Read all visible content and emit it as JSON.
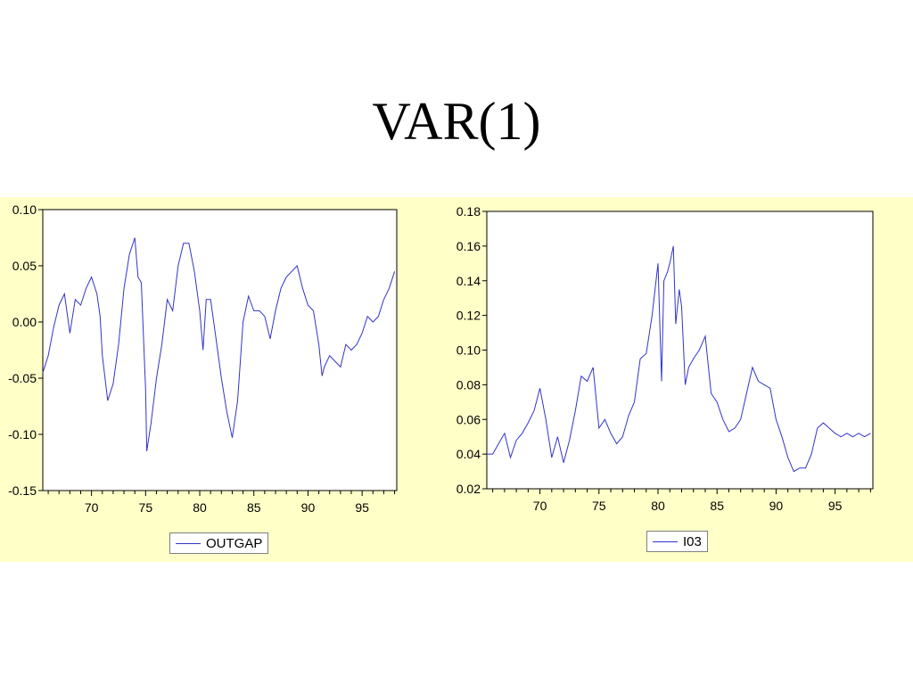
{
  "slide": {
    "title": "VAR(1)"
  },
  "chart_data": [
    {
      "type": "line",
      "title": "",
      "xlabel": "",
      "ylabel": "",
      "xlim": [
        1965.5,
        1998.2
      ],
      "ylim": [
        -0.15,
        0.1
      ],
      "yticks": [
        "0.10",
        "0.05",
        "0.00",
        "-0.05",
        "-0.10",
        "-0.15"
      ],
      "ytick_values": [
        0.1,
        0.05,
        0.0,
        -0.05,
        -0.1,
        -0.15
      ],
      "xticks": [
        "70",
        "75",
        "80",
        "85",
        "90",
        "95"
      ],
      "xtick_values": [
        1970,
        1975,
        1980,
        1985,
        1990,
        1995
      ],
      "grid": false,
      "legend": "bottom-center",
      "color": "#3333cc",
      "series": [
        {
          "name": "OUTGAP",
          "x": [
            1965.5,
            1966.0,
            1966.5,
            1967.0,
            1967.5,
            1968.0,
            1968.5,
            1969.0,
            1969.5,
            1970.0,
            1970.5,
            1970.8,
            1971.0,
            1971.5,
            1972.0,
            1972.5,
            1973.0,
            1973.5,
            1974.0,
            1974.3,
            1974.6,
            1975.0,
            1975.1,
            1975.5,
            1976.0,
            1976.5,
            1977.0,
            1977.5,
            1978.0,
            1978.5,
            1979.0,
            1979.5,
            1980.0,
            1980.3,
            1980.6,
            1981.0,
            1981.5,
            1982.0,
            1982.5,
            1983.0,
            1983.5,
            1984.0,
            1984.5,
            1985.0,
            1985.5,
            1986.0,
            1986.5,
            1987.0,
            1987.5,
            1988.0,
            1988.5,
            1989.0,
            1989.5,
            1990.0,
            1990.5,
            1991.0,
            1991.3,
            1991.5,
            1992.0,
            1992.5,
            1993.0,
            1993.5,
            1994.0,
            1994.5,
            1995.0,
            1995.5,
            1996.0,
            1996.5,
            1997.0,
            1997.5,
            1998.0
          ],
          "values": [
            -0.045,
            -0.03,
            -0.005,
            0.015,
            0.025,
            -0.01,
            0.02,
            0.015,
            0.03,
            0.04,
            0.025,
            0.005,
            -0.03,
            -0.07,
            -0.055,
            -0.02,
            0.03,
            0.06,
            0.075,
            0.04,
            0.035,
            -0.06,
            -0.115,
            -0.09,
            -0.05,
            -0.02,
            0.02,
            0.01,
            0.05,
            0.07,
            0.07,
            0.045,
            0.01,
            -0.025,
            0.02,
            0.02,
            -0.015,
            -0.05,
            -0.08,
            -0.103,
            -0.07,
            0.0,
            0.023,
            0.01,
            0.01,
            0.005,
            -0.015,
            0.01,
            0.03,
            0.04,
            0.045,
            0.05,
            0.03,
            0.015,
            0.01,
            -0.02,
            -0.048,
            -0.04,
            -0.03,
            -0.035,
            -0.04,
            -0.02,
            -0.025,
            -0.02,
            -0.01,
            0.005,
            0.0,
            0.005,
            0.02,
            0.03,
            0.045
          ]
        }
      ]
    },
    {
      "type": "line",
      "title": "",
      "xlabel": "",
      "ylabel": "",
      "xlim": [
        1965.5,
        1998.2
      ],
      "ylim": [
        0.02,
        0.18
      ],
      "yticks": [
        "0.18",
        "0.16",
        "0.14",
        "0.12",
        "0.10",
        "0.08",
        "0.06",
        "0.04",
        "0.02"
      ],
      "ytick_values": [
        0.18,
        0.16,
        0.14,
        0.12,
        0.1,
        0.08,
        0.06,
        0.04,
        0.02
      ],
      "xticks": [
        "70",
        "75",
        "80",
        "85",
        "90",
        "95"
      ],
      "xtick_values": [
        1970,
        1975,
        1980,
        1985,
        1990,
        1995
      ],
      "grid": false,
      "legend": "bottom-center",
      "color": "#3333cc",
      "series": [
        {
          "name": "I03",
          "x": [
            1965.5,
            1966.0,
            1966.5,
            1967.0,
            1967.5,
            1968.0,
            1968.5,
            1969.0,
            1969.5,
            1970.0,
            1970.5,
            1971.0,
            1971.5,
            1972.0,
            1972.5,
            1973.0,
            1973.5,
            1974.0,
            1974.5,
            1975.0,
            1975.5,
            1976.0,
            1976.5,
            1977.0,
            1977.5,
            1978.0,
            1978.5,
            1979.0,
            1979.5,
            1980.0,
            1980.3,
            1980.5,
            1980.8,
            1981.0,
            1981.3,
            1981.5,
            1981.8,
            1982.0,
            1982.3,
            1982.6,
            1983.0,
            1983.5,
            1984.0,
            1984.5,
            1985.0,
            1985.5,
            1986.0,
            1986.5,
            1987.0,
            1987.5,
            1988.0,
            1988.5,
            1989.0,
            1989.5,
            1990.0,
            1990.5,
            1991.0,
            1991.5,
            1992.0,
            1992.5,
            1993.0,
            1993.5,
            1994.0,
            1994.5,
            1995.0,
            1995.5,
            1996.0,
            1996.5,
            1997.0,
            1997.5,
            1998.0
          ],
          "values": [
            0.04,
            0.04,
            0.046,
            0.052,
            0.038,
            0.048,
            0.052,
            0.058,
            0.065,
            0.078,
            0.06,
            0.038,
            0.05,
            0.035,
            0.048,
            0.065,
            0.085,
            0.082,
            0.09,
            0.055,
            0.06,
            0.052,
            0.046,
            0.05,
            0.062,
            0.07,
            0.095,
            0.098,
            0.12,
            0.15,
            0.082,
            0.14,
            0.145,
            0.15,
            0.16,
            0.115,
            0.135,
            0.125,
            0.08,
            0.09,
            0.095,
            0.1,
            0.108,
            0.075,
            0.07,
            0.06,
            0.053,
            0.055,
            0.06,
            0.075,
            0.09,
            0.082,
            0.08,
            0.078,
            0.06,
            0.05,
            0.038,
            0.03,
            0.032,
            0.032,
            0.04,
            0.055,
            0.058,
            0.055,
            0.052,
            0.05,
            0.052,
            0.05,
            0.052,
            0.05,
            0.052
          ]
        }
      ]
    }
  ]
}
